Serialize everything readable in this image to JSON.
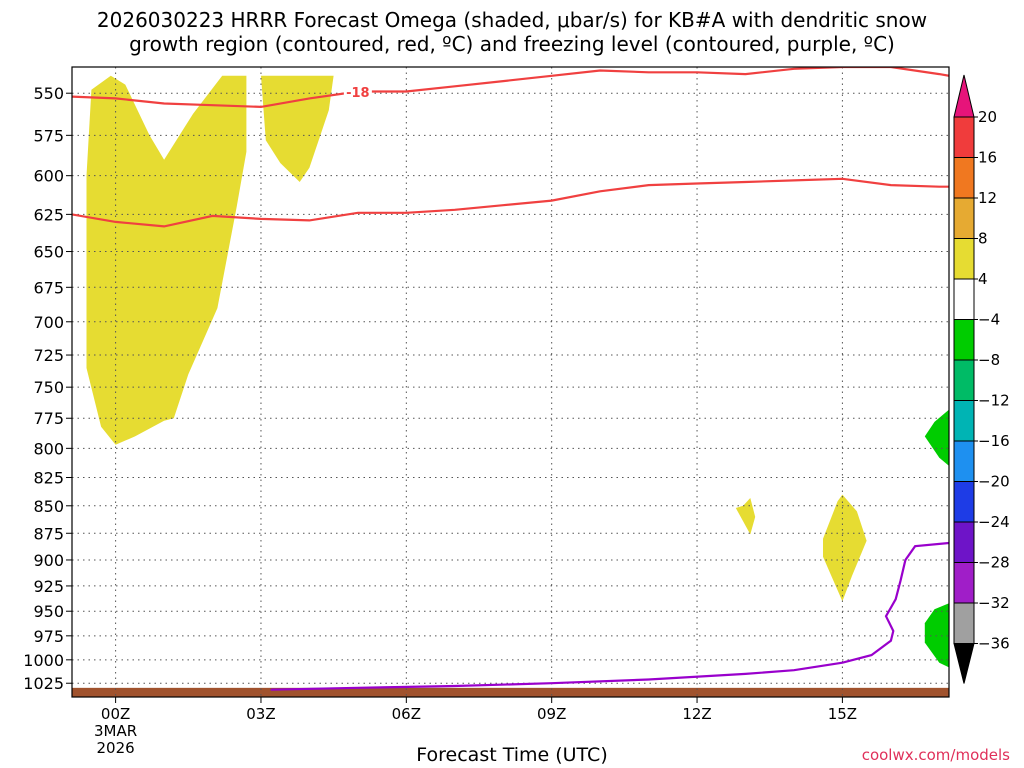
{
  "header": {
    "title_line1": "2026030223 HRRR Forecast Omega (shaded, μbar/s) for KB#A with dendritic snow",
    "title_line2": "growth region (contoured, red, ºC) and freezing level (contoured, purple, ºC)"
  },
  "footer": {
    "xlabel": "Forecast Time (UTC)",
    "credit": "coolwx.com/models"
  },
  "chart_data": {
    "type": "contour",
    "x_unit": "forecast hour",
    "xlim": [
      -0.9,
      17.2
    ],
    "ylim": [
      1040,
      535
    ],
    "y_scale": "log-pressure",
    "grid": "dotted",
    "y_ticks": [
      550,
      575,
      600,
      625,
      650,
      675,
      700,
      725,
      750,
      775,
      800,
      825,
      850,
      875,
      900,
      925,
      950,
      975,
      1000,
      1025
    ],
    "x_ticks": [
      {
        "hour": 0,
        "label": "00Z",
        "sub1": "3MAR",
        "sub2": "2026"
      },
      {
        "hour": 3,
        "label": "03Z"
      },
      {
        "hour": 6,
        "label": "06Z"
      },
      {
        "hour": 9,
        "label": "09Z"
      },
      {
        "hour": 12,
        "label": "12Z"
      },
      {
        "hour": 15,
        "label": "15Z"
      }
    ],
    "dendritic_contours": [
      {
        "color": "#f04040",
        "label": "-18",
        "label_at": [
          5.0,
          550
        ],
        "points": [
          [
            -0.9,
            552
          ],
          [
            0,
            553
          ],
          [
            1,
            556
          ],
          [
            2,
            557
          ],
          [
            3,
            558
          ],
          [
            4,
            553
          ],
          [
            5,
            549
          ],
          [
            6,
            549
          ],
          [
            7,
            546
          ],
          [
            8,
            543
          ],
          [
            9,
            540
          ],
          [
            10,
            537
          ],
          [
            11,
            538
          ],
          [
            12,
            538
          ],
          [
            13,
            539
          ],
          [
            14,
            536
          ],
          [
            15,
            535
          ],
          [
            16,
            535
          ],
          [
            17,
            539
          ],
          [
            17.2,
            540
          ]
        ]
      },
      {
        "color": "#f04040",
        "points": [
          [
            -0.9,
            625
          ],
          [
            0,
            630
          ],
          [
            1,
            633
          ],
          [
            2,
            626
          ],
          [
            3,
            628
          ],
          [
            4,
            629
          ],
          [
            5,
            624
          ],
          [
            6,
            624
          ],
          [
            7,
            622
          ],
          [
            8,
            619
          ],
          [
            9,
            616
          ],
          [
            10,
            610
          ],
          [
            11,
            606
          ],
          [
            12,
            605
          ],
          [
            13,
            604
          ],
          [
            14,
            603
          ],
          [
            15,
            602
          ],
          [
            16,
            606
          ],
          [
            17,
            607
          ],
          [
            17.2,
            607
          ]
        ]
      }
    ],
    "freezing_level": {
      "color": "#9900cc",
      "points": [
        [
          3.2,
          1032
        ],
        [
          5,
          1030
        ],
        [
          7,
          1028
        ],
        [
          9,
          1025
        ],
        [
          11,
          1021
        ],
        [
          13,
          1015
        ],
        [
          14,
          1011
        ],
        [
          15,
          1003
        ],
        [
          15.6,
          995
        ],
        [
          16.0,
          980
        ],
        [
          16.05,
          970
        ],
        [
          15.9,
          955
        ],
        [
          16.1,
          938
        ],
        [
          16.2,
          920
        ],
        [
          16.3,
          900
        ],
        [
          16.5,
          887
        ],
        [
          17.2,
          884
        ]
      ]
    },
    "omega_regions": [
      {
        "color": "#e6dc32",
        "range": "4 to 8",
        "points": [
          [
            -0.5,
            548
          ],
          [
            -0.1,
            540
          ],
          [
            0.2,
            545
          ],
          [
            0.7,
            575
          ],
          [
            1.0,
            590
          ],
          [
            1.6,
            562
          ],
          [
            2.2,
            540
          ],
          [
            2.7,
            540
          ],
          [
            2.7,
            585
          ],
          [
            2.5,
            620
          ],
          [
            2.1,
            690
          ],
          [
            1.5,
            740
          ],
          [
            1.2,
            775
          ],
          [
            1.0,
            777
          ],
          [
            0.4,
            790
          ],
          [
            0.0,
            797
          ],
          [
            -0.3,
            782
          ],
          [
            -0.6,
            735
          ],
          [
            -0.6,
            660
          ],
          [
            -0.6,
            600
          ]
        ]
      },
      {
        "color": "#e6dc32",
        "range": "4 to 8",
        "points": [
          [
            3.0,
            540
          ],
          [
            4.5,
            540
          ],
          [
            4.4,
            560
          ],
          [
            4.0,
            595
          ],
          [
            3.8,
            604
          ],
          [
            3.4,
            592
          ],
          [
            3.1,
            578
          ]
        ]
      },
      {
        "color": "#e6dc32",
        "range": "4 to 8",
        "points": [
          [
            12.95,
            850
          ],
          [
            13.1,
            843
          ],
          [
            13.2,
            860
          ],
          [
            13.1,
            876
          ],
          [
            12.9,
            860
          ],
          [
            12.8,
            852
          ]
        ]
      },
      {
        "color": "#e6dc32",
        "range": "4 to 8",
        "points": [
          [
            14.6,
            880
          ],
          [
            14.9,
            846
          ],
          [
            15.0,
            840
          ],
          [
            15.3,
            855
          ],
          [
            15.5,
            882
          ],
          [
            15.2,
            915
          ],
          [
            15.0,
            940
          ],
          [
            14.6,
            897
          ]
        ]
      },
      {
        "color": "#00cc00",
        "range": "-8 to -4",
        "points": [
          [
            17.2,
            768
          ],
          [
            16.9,
            778
          ],
          [
            16.7,
            790
          ],
          [
            17.0,
            808
          ],
          [
            17.2,
            815
          ]
        ]
      },
      {
        "color": "#00cc00",
        "range": "-8 to -4",
        "points": [
          [
            17.2,
            942
          ],
          [
            16.9,
            948
          ],
          [
            16.7,
            962
          ],
          [
            16.7,
            982
          ],
          [
            17.0,
            1003
          ],
          [
            17.2,
            1008
          ]
        ]
      }
    ],
    "terrain": {
      "color": "#a0522d",
      "top_pressure": 1030,
      "bottom_pressure": 1040
    },
    "colorbar": {
      "bins": [
        {
          "lo": 16,
          "hi": 20,
          "color": "#f03c3c"
        },
        {
          "lo": 12,
          "hi": 16,
          "color": "#f07820"
        },
        {
          "lo": 8,
          "hi": 12,
          "color": "#e6aa32"
        },
        {
          "lo": 4,
          "hi": 8,
          "color": "#e6dc32"
        },
        {
          "lo": -4,
          "hi": 4,
          "color": "#ffffff"
        },
        {
          "lo": -8,
          "hi": -4,
          "color": "#00cc00"
        },
        {
          "lo": -12,
          "hi": -8,
          "color": "#00bb66"
        },
        {
          "lo": -16,
          "hi": -12,
          "color": "#00b4b4"
        },
        {
          "lo": -20,
          "hi": -16,
          "color": "#1e90f0"
        },
        {
          "lo": -24,
          "hi": -20,
          "color": "#1e3ce6"
        },
        {
          "lo": -28,
          "hi": -24,
          "color": "#6e14c8"
        },
        {
          "lo": -32,
          "hi": -28,
          "color": "#a01ec8"
        },
        {
          "lo": -36,
          "hi": -32,
          "color": "#a0a0a0"
        }
      ],
      "tick_labels": [
        "20",
        "16",
        "12",
        "8",
        "4",
        "−4",
        "−8",
        "−12",
        "−16",
        "−20",
        "−24",
        "−28",
        "−32",
        "−36"
      ],
      "top_arrow_color": "#e6147a",
      "bottom_arrow_color": "#000000"
    }
  }
}
